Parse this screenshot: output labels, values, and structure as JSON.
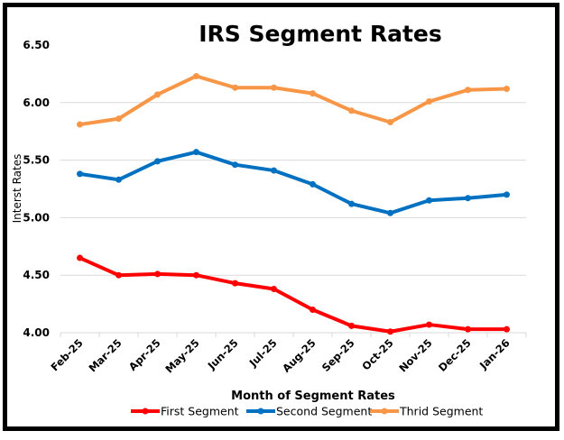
{
  "chart_data": {
    "type": "line",
    "title": "IRS Segment Rates",
    "xlabel": "Month of Segment Rates",
    "ylabel": "Interst Rates",
    "ylim": [
      4.0,
      6.5
    ],
    "yticks": [
      "4.00",
      "4.50",
      "5.00",
      "5.50",
      "6.00",
      "6.50"
    ],
    "ytick_values": [
      4.0,
      4.5,
      5.0,
      5.5,
      6.0,
      6.5
    ],
    "grid": true,
    "legend_position": "bottom",
    "categories": [
      "Feb-25",
      "Mar-25",
      "Apr-25",
      "May-25",
      "Jun-25",
      "Jul-25",
      "Aug-25",
      "Sep-25",
      "Oct-25",
      "Nov-25",
      "Dec-25",
      "Jan-26"
    ],
    "series": [
      {
        "name": "First Segment",
        "color": "#FF0000",
        "values": [
          4.65,
          4.5,
          4.51,
          4.5,
          4.43,
          4.38,
          4.2,
          4.06,
          4.01,
          4.07,
          4.03,
          4.03
        ]
      },
      {
        "name": "Second Segment",
        "color": "#0070C0",
        "values": [
          5.38,
          5.33,
          5.49,
          5.57,
          5.46,
          5.41,
          5.29,
          5.12,
          5.04,
          5.15,
          5.17,
          5.2
        ]
      },
      {
        "name": "Thrid Segment",
        "color": "#F79646",
        "values": [
          5.81,
          5.86,
          6.07,
          6.23,
          6.13,
          6.13,
          6.08,
          5.93,
          5.83,
          6.01,
          6.11,
          6.12
        ]
      }
    ]
  }
}
